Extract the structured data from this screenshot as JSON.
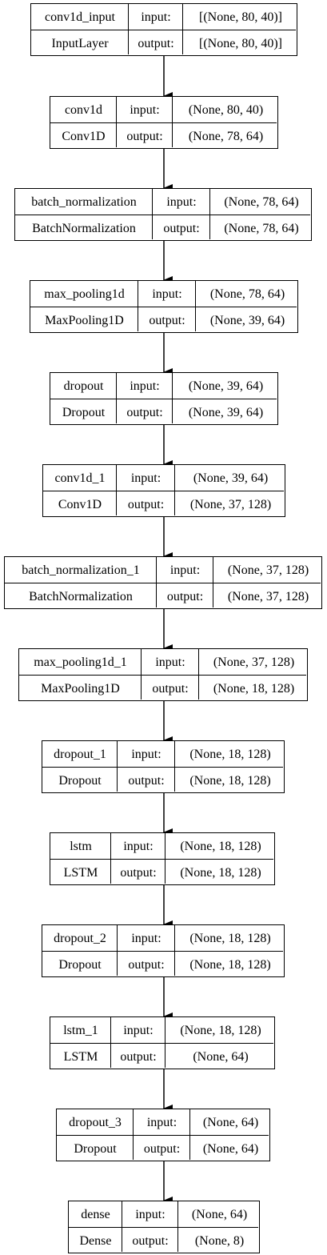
{
  "layers": [
    {
      "name": "conv1d_input",
      "type": "InputLayer",
      "input_label": "input:",
      "output_label": "output:",
      "input": "[(None, 80, 40)]",
      "output": "[(None, 80, 40)]"
    },
    {
      "name": "conv1d",
      "type": "Conv1D",
      "input_label": "input:",
      "output_label": "output:",
      "input": "(None, 80, 40)",
      "output": "(None, 78, 64)"
    },
    {
      "name": "batch_normalization",
      "type": "BatchNormalization",
      "input_label": "input:",
      "output_label": "output:",
      "input": "(None, 78, 64)",
      "output": "(None, 78, 64)"
    },
    {
      "name": "max_pooling1d",
      "type": "MaxPooling1D",
      "input_label": "input:",
      "output_label": "output:",
      "input": "(None, 78, 64)",
      "output": "(None, 39, 64)"
    },
    {
      "name": "dropout",
      "type": "Dropout",
      "input_label": "input:",
      "output_label": "output:",
      "input": "(None, 39, 64)",
      "output": "(None, 39, 64)"
    },
    {
      "name": "conv1d_1",
      "type": "Conv1D",
      "input_label": "input:",
      "output_label": "output:",
      "input": "(None, 39, 64)",
      "output": "(None, 37, 128)"
    },
    {
      "name": "batch_normalization_1",
      "type": "BatchNormalization",
      "input_label": "input:",
      "output_label": "output:",
      "input": "(None, 37, 128)",
      "output": "(None, 37, 128)"
    },
    {
      "name": "max_pooling1d_1",
      "type": "MaxPooling1D",
      "input_label": "input:",
      "output_label": "output:",
      "input": "(None, 37, 128)",
      "output": "(None, 18, 128)"
    },
    {
      "name": "dropout_1",
      "type": "Dropout",
      "input_label": "input:",
      "output_label": "output:",
      "input": "(None, 18, 128)",
      "output": "(None, 18, 128)"
    },
    {
      "name": "lstm",
      "type": "LSTM",
      "input_label": "input:",
      "output_label": "output:",
      "input": "(None, 18, 128)",
      "output": "(None, 18, 128)"
    },
    {
      "name": "dropout_2",
      "type": "Dropout",
      "input_label": "input:",
      "output_label": "output:",
      "input": "(None, 18, 128)",
      "output": "(None, 18, 128)"
    },
    {
      "name": "lstm_1",
      "type": "LSTM",
      "input_label": "input:",
      "output_label": "output:",
      "input": "(None, 18, 128)",
      "output": "(None, 64)"
    },
    {
      "name": "dropout_3",
      "type": "Dropout",
      "input_label": "input:",
      "output_label": "output:",
      "input": "(None, 64)",
      "output": "(None, 64)"
    },
    {
      "name": "dense",
      "type": "Dense",
      "input_label": "input:",
      "output_label": "output:",
      "input": "(None, 64)",
      "output": "(None, 8)"
    }
  ]
}
